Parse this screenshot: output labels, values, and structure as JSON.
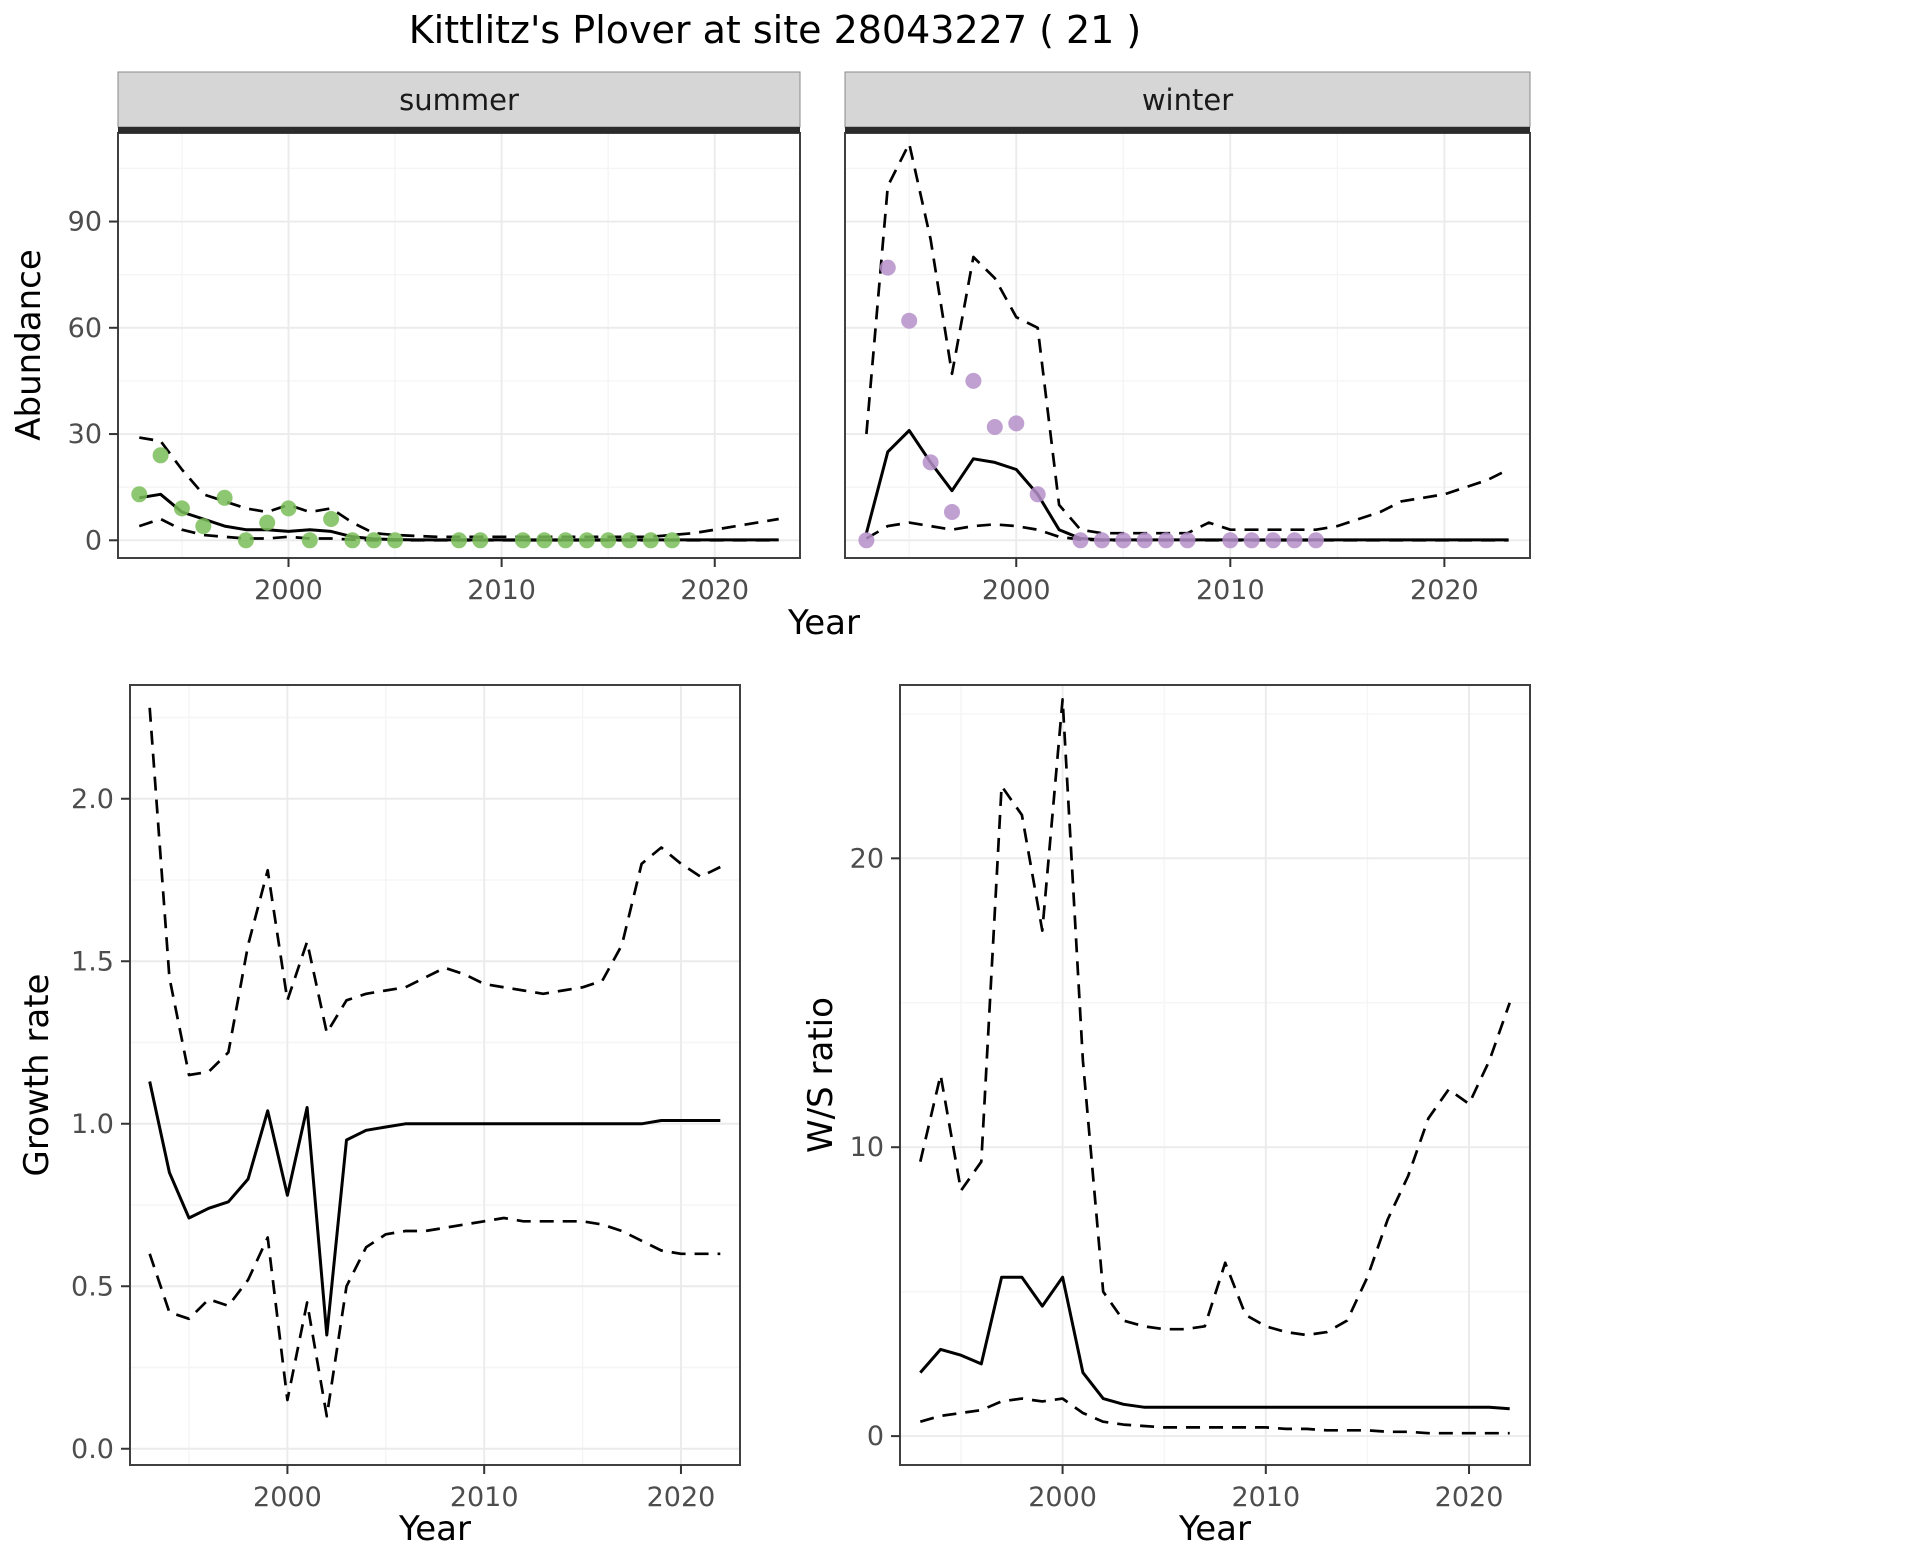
{
  "title": "Kittlitz's Plover at site 28043227 ( 21 )",
  "colors": {
    "line": "#000000",
    "summer_points": "#7ABD58",
    "winter_points": "#B58FC9",
    "strip_bg": "#D6D6D6",
    "strip_text": "#1A1A1A",
    "grid_major": "#EBEBEB",
    "grid_minor": "#F5F5F5",
    "panel_border": "#404040",
    "tick_text": "#4D4D4D"
  },
  "chart_data": [
    {
      "id": "abundance-summer",
      "type": "line",
      "facet_label": "summer",
      "xlabel": "Year",
      "ylabel": "Abundance",
      "xlim": [
        1992,
        2024
      ],
      "ylim": [
        -5,
        115
      ],
      "xticks": [
        2000,
        2010,
        2020
      ],
      "xtick_labels": [
        "2000",
        "2010",
        "2020"
      ],
      "yticks": [
        0,
        30,
        60,
        90
      ],
      "ytick_labels": [
        "0",
        "30",
        "60",
        "90"
      ],
      "x": [
        1993,
        1994,
        1995,
        1996,
        1997,
        1998,
        1999,
        2000,
        2001,
        2002,
        2003,
        2004,
        2005,
        2006,
        2007,
        2008,
        2009,
        2010,
        2011,
        2012,
        2013,
        2014,
        2015,
        2016,
        2017,
        2018,
        2019,
        2020,
        2021,
        2022,
        2023
      ],
      "series": [
        {
          "name": "upper-ci",
          "style": "dashed",
          "values": [
            29,
            28,
            20,
            13,
            11,
            9,
            8,
            10,
            8,
            9,
            5,
            2,
            1.5,
            1.2,
            1,
            1,
            1,
            1,
            1,
            1,
            1,
            1,
            1,
            1,
            1,
            1.5,
            2,
            3,
            4,
            5,
            6
          ]
        },
        {
          "name": "lower-ci",
          "style": "dashed",
          "values": [
            4,
            6,
            3,
            1.5,
            1,
            0.5,
            0.5,
            1,
            0.5,
            0.5,
            0.2,
            0,
            0,
            0,
            0,
            0,
            0,
            0,
            0,
            0,
            0,
            0,
            0,
            0,
            0,
            0,
            0,
            0,
            0,
            0,
            0
          ]
        },
        {
          "name": "median",
          "style": "solid",
          "values": [
            12,
            13,
            8,
            6,
            4,
            3,
            3,
            2.5,
            3,
            2.5,
            1,
            0.4,
            0.2,
            0.1,
            0.1,
            0.1,
            0.1,
            0.1,
            0.1,
            0.1,
            0.1,
            0.1,
            0.1,
            0.1,
            0.1,
            0.1,
            0.1,
            0.1,
            0.1,
            0.1,
            0.1
          ]
        }
      ],
      "points": {
        "name": "observed-summer",
        "color": "#7ABD58",
        "x": [
          1993,
          1994,
          1995,
          1996,
          1997,
          1998,
          1999,
          2000,
          2001,
          2002,
          2003,
          2004,
          2005,
          2008,
          2009,
          2011,
          2012,
          2013,
          2014,
          2015,
          2016,
          2017,
          2018
        ],
        "y": [
          13,
          24,
          9,
          4,
          12,
          0,
          5,
          9,
          0,
          6,
          0,
          0,
          0,
          0,
          0,
          0,
          0,
          0,
          0,
          0,
          0,
          0,
          0
        ]
      }
    },
    {
      "id": "abundance-winter",
      "type": "line",
      "facet_label": "winter",
      "xlabel": "Year",
      "ylabel": "Abundance",
      "xlim": [
        1992,
        2024
      ],
      "ylim": [
        -5,
        115
      ],
      "xticks": [
        2000,
        2010,
        2020
      ],
      "xtick_labels": [
        "2000",
        "2010",
        "2020"
      ],
      "yticks": [
        0,
        30,
        60,
        90
      ],
      "ytick_labels": [
        "0",
        "30",
        "60",
        "90"
      ],
      "x": [
        1993,
        1994,
        1995,
        1996,
        1997,
        1998,
        1999,
        2000,
        2001,
        2002,
        2003,
        2004,
        2005,
        2006,
        2007,
        2008,
        2009,
        2010,
        2011,
        2012,
        2013,
        2014,
        2015,
        2016,
        2017,
        2018,
        2019,
        2020,
        2021,
        2022,
        2023
      ],
      "series": [
        {
          "name": "upper-ci",
          "style": "dashed",
          "values": [
            30,
            100,
            112,
            85,
            47,
            80,
            74,
            63,
            60,
            10,
            3,
            2,
            2,
            2,
            2,
            2,
            5,
            3,
            3,
            3,
            3,
            3,
            4,
            6,
            8,
            11,
            12,
            13,
            15,
            17,
            20
          ]
        },
        {
          "name": "lower-ci",
          "style": "dashed",
          "values": [
            0.5,
            4,
            5,
            4,
            3,
            4,
            4.5,
            4,
            3,
            1,
            0.2,
            0,
            0,
            0,
            0,
            0,
            0,
            0,
            0,
            0,
            0,
            0,
            0,
            0,
            0,
            0,
            0,
            0,
            0,
            0,
            0
          ]
        },
        {
          "name": "median",
          "style": "solid",
          "values": [
            2,
            25,
            31,
            22,
            14,
            23,
            22,
            20,
            13,
            3,
            0.5,
            0.1,
            0.1,
            0.1,
            0.1,
            0.1,
            0.1,
            0.1,
            0.1,
            0.1,
            0.1,
            0.1,
            0.1,
            0.1,
            0.1,
            0.1,
            0.1,
            0.1,
            0.1,
            0.1,
            0.1
          ]
        }
      ],
      "points": {
        "name": "observed-winter",
        "color": "#B58FC9",
        "x": [
          1993,
          1994,
          1995,
          1996,
          1997,
          1998,
          1999,
          2000,
          2001,
          2003,
          2004,
          2005,
          2006,
          2007,
          2008,
          2010,
          2011,
          2012,
          2013,
          2014
        ],
        "y": [
          0,
          77,
          62,
          22,
          8,
          45,
          32,
          33,
          13,
          0,
          0,
          0,
          0,
          0,
          0,
          0,
          0,
          0,
          0,
          0
        ]
      }
    },
    {
      "id": "growth-rate",
      "type": "line",
      "facet_label": "",
      "xlabel": "Year",
      "ylabel": "Growth rate",
      "xlim": [
        1992,
        2023
      ],
      "ylim": [
        -0.05,
        2.35
      ],
      "xticks": [
        2000,
        2010,
        2020
      ],
      "xtick_labels": [
        "2000",
        "2010",
        "2020"
      ],
      "yticks": [
        0,
        0.5,
        1,
        1.5,
        2
      ],
      "ytick_labels": [
        "0.0",
        "0.5",
        "1.0",
        "1.5",
        "2.0"
      ],
      "x": [
        1993,
        1994,
        1995,
        1996,
        1997,
        1998,
        1999,
        2000,
        2001,
        2002,
        2003,
        2004,
        2005,
        2006,
        2007,
        2008,
        2009,
        2010,
        2011,
        2012,
        2013,
        2014,
        2015,
        2016,
        2017,
        2018,
        2019,
        2020,
        2021,
        2022
      ],
      "series": [
        {
          "name": "upper-ci",
          "style": "dashed",
          "values": [
            2.28,
            1.45,
            1.15,
            1.16,
            1.22,
            1.55,
            1.78,
            1.38,
            1.56,
            1.28,
            1.38,
            1.4,
            1.41,
            1.42,
            1.45,
            1.48,
            1.46,
            1.43,
            1.42,
            1.41,
            1.4,
            1.41,
            1.42,
            1.44,
            1.55,
            1.8,
            1.85,
            1.8,
            1.76,
            1.79
          ]
        },
        {
          "name": "lower-ci",
          "style": "dashed",
          "values": [
            0.6,
            0.42,
            0.4,
            0.46,
            0.44,
            0.52,
            0.65,
            0.15,
            0.45,
            0.1,
            0.5,
            0.62,
            0.66,
            0.67,
            0.67,
            0.68,
            0.69,
            0.7,
            0.71,
            0.7,
            0.7,
            0.7,
            0.7,
            0.69,
            0.67,
            0.64,
            0.61,
            0.6,
            0.6,
            0.6
          ]
        },
        {
          "name": "median",
          "style": "solid",
          "values": [
            1.13,
            0.85,
            0.71,
            0.74,
            0.76,
            0.83,
            1.04,
            0.78,
            1.05,
            0.35,
            0.95,
            0.98,
            0.99,
            1,
            1,
            1,
            1,
            1,
            1,
            1,
            1,
            1,
            1,
            1,
            1,
            1,
            1.01,
            1.01,
            1.01,
            1.01
          ]
        }
      ]
    },
    {
      "id": "ws-ratio",
      "type": "line",
      "facet_label": "",
      "xlabel": "Year",
      "ylabel": "W/S ratio",
      "xlim": [
        1992,
        2023
      ],
      "ylim": [
        -1,
        26
      ],
      "xticks": [
        2000,
        2010,
        2020
      ],
      "xtick_labels": [
        "2000",
        "2010",
        "2020"
      ],
      "yticks": [
        0,
        10,
        20
      ],
      "ytick_labels": [
        "0",
        "10",
        "20"
      ],
      "x": [
        1993,
        1994,
        1995,
        1996,
        1997,
        1998,
        1999,
        2000,
        2001,
        2002,
        2003,
        2004,
        2005,
        2006,
        2007,
        2008,
        2009,
        2010,
        2011,
        2012,
        2013,
        2014,
        2015,
        2016,
        2017,
        2018,
        2019,
        2020,
        2021,
        2022
      ],
      "series": [
        {
          "name": "upper-ci",
          "style": "dashed",
          "values": [
            9.5,
            12.5,
            8.5,
            9.5,
            22.5,
            21.5,
            17.5,
            25.5,
            13,
            5,
            4,
            3.8,
            3.7,
            3.7,
            3.8,
            6,
            4.2,
            3.8,
            3.6,
            3.5,
            3.6,
            4,
            5.5,
            7.5,
            9,
            11,
            12,
            11.5,
            13,
            15
          ]
        },
        {
          "name": "lower-ci",
          "style": "dashed",
          "values": [
            0.5,
            0.7,
            0.8,
            0.9,
            1.2,
            1.3,
            1.2,
            1.3,
            0.8,
            0.5,
            0.4,
            0.35,
            0.3,
            0.3,
            0.3,
            0.3,
            0.3,
            0.3,
            0.25,
            0.25,
            0.2,
            0.2,
            0.2,
            0.15,
            0.15,
            0.1,
            0.1,
            0.1,
            0.1,
            0.1
          ]
        },
        {
          "name": "median",
          "style": "solid",
          "values": [
            2.2,
            3,
            2.8,
            2.5,
            5.5,
            5.5,
            4.5,
            5.5,
            2.2,
            1.3,
            1.1,
            1,
            1,
            1,
            1,
            1,
            1,
            1,
            1,
            1,
            1,
            1,
            1,
            1,
            1,
            1,
            1,
            1,
            1,
            0.95
          ]
        }
      ]
    }
  ]
}
